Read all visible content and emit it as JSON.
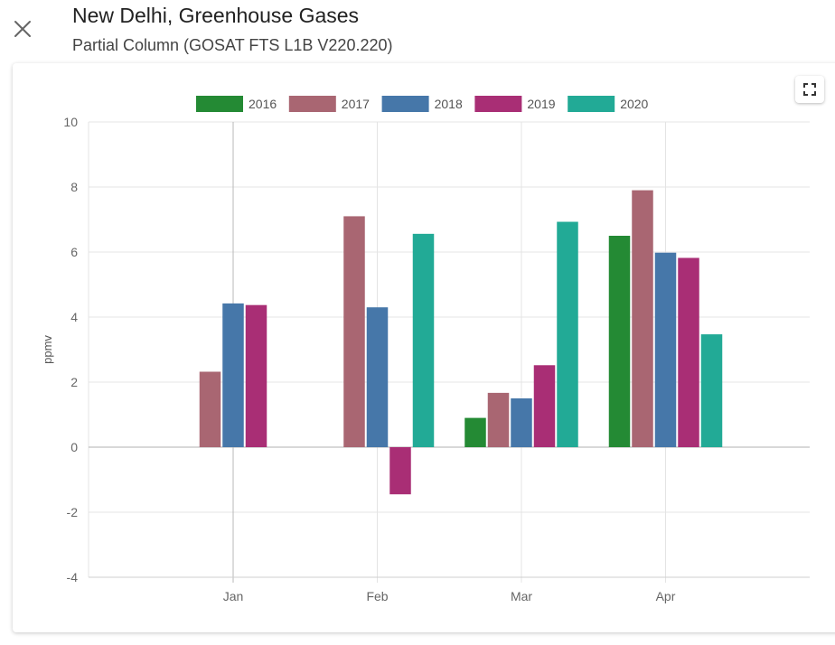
{
  "header": {
    "title": "New Delhi, Greenhouse Gases",
    "subtitle": "Partial Column (GOSAT FTS L1B V220.220)",
    "close_icon": "close-icon",
    "fullscreen_icon": "fullscreen-icon"
  },
  "chart_data": {
    "type": "bar",
    "categories": [
      "Jan",
      "Feb",
      "Mar",
      "Apr"
    ],
    "series": [
      {
        "name": "2016",
        "color": "#248a34",
        "values": [
          null,
          null,
          0.9,
          6.5
        ]
      },
      {
        "name": "2017",
        "color": "#a96672",
        "values": [
          2.32,
          7.1,
          1.67,
          7.9
        ]
      },
      {
        "name": "2018",
        "color": "#4677a9",
        "values": [
          4.42,
          4.3,
          1.5,
          5.98
        ]
      },
      {
        "name": "2019",
        "color": "#a92e75",
        "values": [
          4.37,
          -1.45,
          2.52,
          5.82
        ]
      },
      {
        "name": "2020",
        "color": "#22aa96",
        "values": [
          null,
          6.56,
          6.93,
          3.47
        ]
      }
    ],
    "ylabel": "ppmv",
    "ylim": [
      -4,
      10
    ],
    "yticks": [
      -4,
      -2,
      0,
      2,
      4,
      6,
      8,
      10
    ],
    "grid": true,
    "legend_position": "top-center"
  }
}
